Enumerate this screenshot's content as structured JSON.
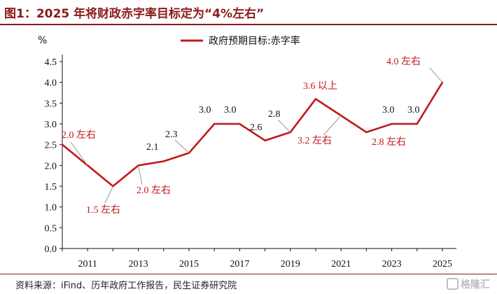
{
  "figure": {
    "title": "图1：2025 年将财政赤字率目标定为“4%左右”",
    "source": "资料来源：iFind、历年政府工作报告，民生证券研究院",
    "watermark": "格隆汇"
  },
  "chart_data": {
    "type": "line",
    "x": [
      2010,
      2011,
      2012,
      2013,
      2014,
      2015,
      2016,
      2017,
      2018,
      2019,
      2020,
      2021,
      2022,
      2023,
      2024,
      2025
    ],
    "series": [
      {
        "name": "政府预期目标:赤字率",
        "values": [
          2.5,
          2.0,
          1.5,
          2.0,
          2.1,
          2.3,
          3.0,
          3.0,
          2.6,
          2.8,
          3.6,
          3.2,
          2.8,
          3.0,
          3.0,
          4.0
        ],
        "color": "#c0181a"
      }
    ],
    "xticks": [
      "2011",
      "2013",
      "2015",
      "2017",
      "2019",
      "2021",
      "2023",
      "2025"
    ],
    "yticks": [
      "0.0",
      "0.5",
      "1.0",
      "1.5",
      "2.0",
      "2.5",
      "3.0",
      "3.5",
      "4.0",
      "4.5"
    ],
    "ylim": [
      0,
      4.5
    ],
    "xlim": [
      2010,
      2025
    ],
    "yunit": "%",
    "legend_position": "top-center",
    "grid": false,
    "annotations": [
      {
        "x": 2011,
        "y": 2.0,
        "text": "2.0 左右",
        "color": "red"
      },
      {
        "x": 2012,
        "y": 1.5,
        "text": "1.5 左右",
        "color": "red"
      },
      {
        "x": 2013,
        "y": 2.0,
        "text": "2.0 左右",
        "color": "red"
      },
      {
        "x": 2014,
        "y": 2.1,
        "text": "2.1",
        "color": "black"
      },
      {
        "x": 2015,
        "y": 2.3,
        "text": "2.3",
        "color": "black"
      },
      {
        "x": 2016,
        "y": 3.0,
        "text": "3.0",
        "color": "black"
      },
      {
        "x": 2017,
        "y": 3.0,
        "text": "3.0",
        "color": "black"
      },
      {
        "x": 2018,
        "y": 2.6,
        "text": "2.6",
        "color": "black"
      },
      {
        "x": 2019,
        "y": 2.8,
        "text": "2.8",
        "color": "black"
      },
      {
        "x": 2020,
        "y": 3.6,
        "text": "3.6 以上",
        "color": "red"
      },
      {
        "x": 2021,
        "y": 3.2,
        "text": "3.2 左右",
        "color": "red"
      },
      {
        "x": 2022,
        "y": 2.8,
        "text": "2.8 左右",
        "color": "red"
      },
      {
        "x": 2023,
        "y": 3.0,
        "text": "3.0",
        "color": "black"
      },
      {
        "x": 2024,
        "y": 3.0,
        "text": "3.0",
        "color": "black"
      },
      {
        "x": 2025,
        "y": 4.0,
        "text": "4.0 左右",
        "color": "red"
      }
    ]
  }
}
